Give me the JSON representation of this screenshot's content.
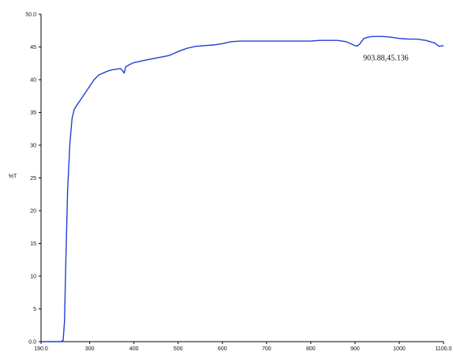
{
  "chart_data": {
    "type": "line",
    "title": "",
    "xlabel": "",
    "ylabel": "%T",
    "xlim": [
      190.0,
      1100.0
    ],
    "ylim": [
      0.0,
      50.0
    ],
    "x_ticks": [
      190.0,
      300,
      400,
      500,
      600,
      700,
      800,
      900,
      1000,
      1100.0
    ],
    "x_tick_labels": [
      "190.0",
      "300",
      "400",
      "500",
      "600",
      "700",
      "800",
      "900",
      "1000",
      "1100.0"
    ],
    "y_ticks": [
      0,
      5,
      10,
      15,
      20,
      25,
      30,
      35,
      40,
      45,
      50
    ],
    "y_tick_labels": [
      "0.0",
      "5",
      "10",
      "15",
      "20",
      "25",
      "30",
      "35",
      "40",
      "45",
      "50.0"
    ],
    "grid": false,
    "series": [
      {
        "color": "#1f3fd6",
        "x": [
          190,
          200,
          210,
          220,
          230,
          235,
          240,
          243,
          246,
          250,
          255,
          260,
          265,
          270,
          280,
          290,
          300,
          310,
          320,
          330,
          340,
          350,
          360,
          370,
          375,
          378,
          380,
          382,
          385,
          390,
          400,
          420,
          450,
          480,
          500,
          520,
          540,
          560,
          580,
          600,
          620,
          640,
          660,
          680,
          700,
          720,
          740,
          760,
          780,
          800,
          820,
          840,
          860,
          880,
          890,
          900,
          905,
          910,
          920,
          930,
          940,
          960,
          980,
          1000,
          1020,
          1040,
          1060,
          1080,
          1090,
          1100
        ],
        "y": [
          0,
          0,
          0,
          0,
          0,
          0,
          0.2,
          3,
          12,
          23,
          30,
          34,
          35.5,
          36,
          37,
          38,
          39,
          40,
          40.7,
          41,
          41.3,
          41.5,
          41.6,
          41.7,
          41.3,
          41.0,
          41.6,
          42.0,
          42.1,
          42.3,
          42.6,
          42.9,
          43.3,
          43.7,
          44.3,
          44.8,
          45.1,
          45.2,
          45.3,
          45.5,
          45.8,
          45.9,
          45.9,
          45.9,
          45.9,
          45.9,
          45.9,
          45.9,
          45.9,
          45.9,
          46.0,
          46.0,
          46.0,
          45.8,
          45.5,
          45.2,
          45.15,
          45.4,
          46.3,
          46.5,
          46.6,
          46.6,
          46.5,
          46.3,
          46.2,
          46.2,
          46.0,
          45.6,
          45.1,
          45.2
        ]
      }
    ],
    "annotations": [
      {
        "text": "903.88,45.136",
        "x": 903.88,
        "y": 45.136
      }
    ]
  }
}
